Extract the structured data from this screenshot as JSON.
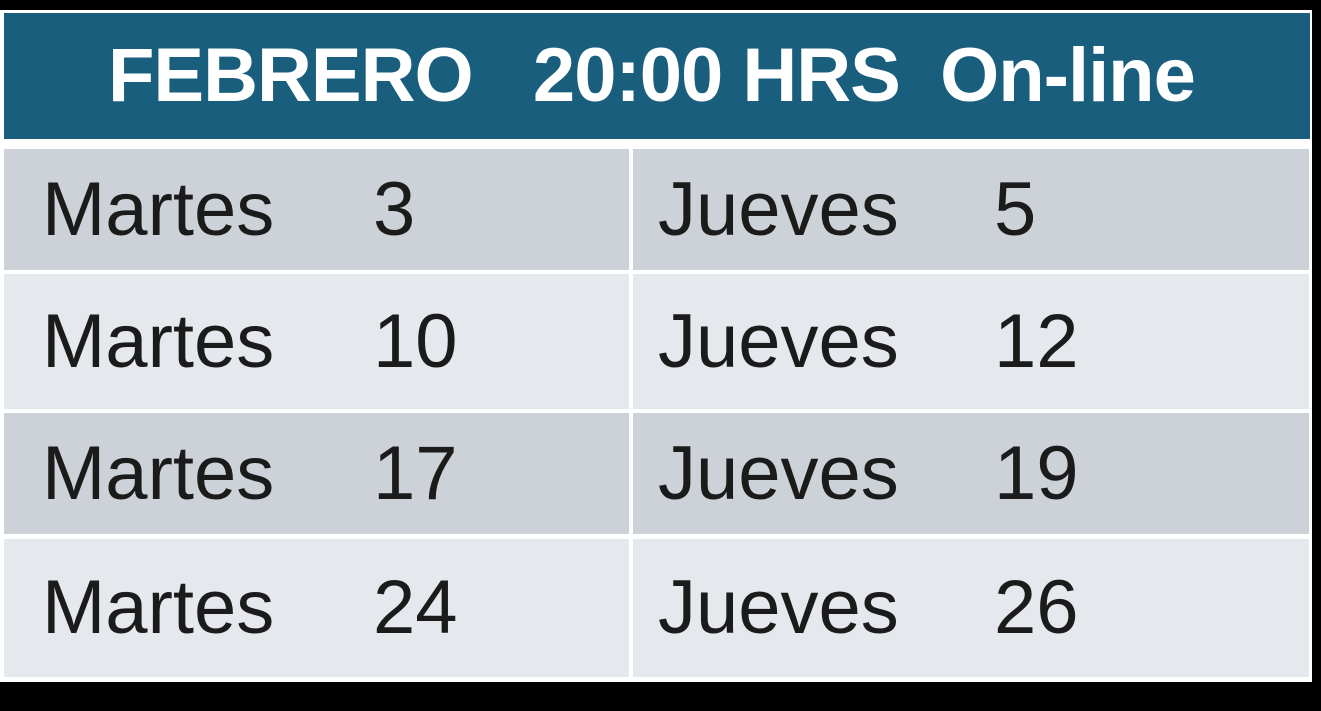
{
  "header": {
    "title": "FEBRERO   20:00 HRS  On-line",
    "month": "FEBRERO",
    "time": "20:00 HRS",
    "mode": "On-line"
  },
  "table": {
    "rows": [
      {
        "left_day": "Martes",
        "left_num": "3",
        "right_day": "Jueves",
        "right_num": "5"
      },
      {
        "left_day": "Martes",
        "left_num": "10",
        "right_day": "Jueves",
        "right_num": "12"
      },
      {
        "left_day": "Martes",
        "left_num": "17",
        "right_day": "Jueves",
        "right_num": "19"
      },
      {
        "left_day": "Martes",
        "left_num": "24",
        "right_day": "Jueves",
        "right_num": "26"
      }
    ]
  },
  "colors": {
    "header_bg": "#1A5E7E",
    "row_dark": "#CDD1D8",
    "row_light": "#E5E8EC",
    "text": "#1B1B1B",
    "frame": "#000000",
    "gap": "#FFFFFF",
    "header_text": "#FFFFFF"
  }
}
